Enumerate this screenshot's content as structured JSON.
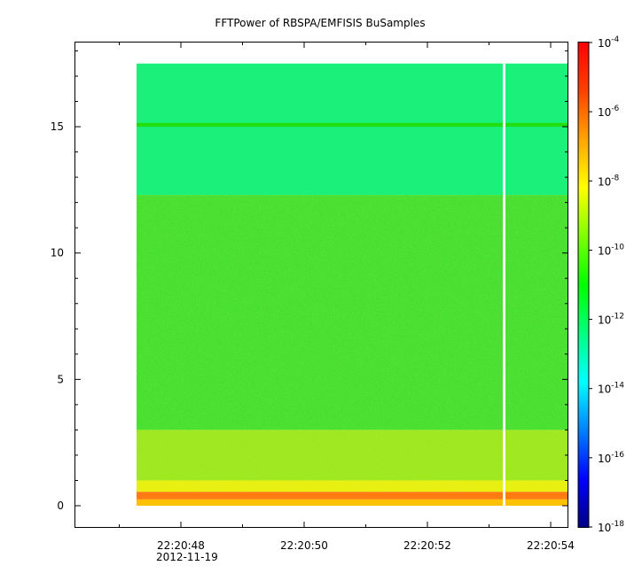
{
  "chart_data": {
    "type": "heatmap",
    "title": "FFTPower of RBSPA/EMFISIS  BuSamples",
    "xlabel": "",
    "ylabel": "",
    "x_ticks": [
      "22:20:48",
      "22:20:50",
      "22:20:52",
      "22:20:54"
    ],
    "x_sublabel": "2012-11-19",
    "y_ticks": [
      0,
      5,
      10,
      15
    ],
    "ylim": [
      -0.3,
      18.5
    ],
    "colorbar": {
      "scale": "log",
      "range": [
        1e-18,
        0.0001
      ],
      "tick_labels": [
        {
          "base": "10",
          "exp": "-18",
          "value": 1e-18
        },
        {
          "base": "10",
          "exp": "-16",
          "value": 1e-16
        },
        {
          "base": "10",
          "exp": "-14",
          "value": 1e-14
        },
        {
          "base": "10",
          "exp": "-12",
          "value": 1e-12
        },
        {
          "base": "10",
          "exp": "-10",
          "value": 1e-10
        },
        {
          "base": "10",
          "exp": "-8",
          "value": 1e-08
        },
        {
          "base": "10",
          "exp": "-6",
          "value": 1e-06
        },
        {
          "base": "10",
          "exp": "-4",
          "value": 0.0001
        }
      ],
      "colormap": [
        "#000080",
        "#0000ff",
        "#0080ff",
        "#00ffff",
        "#00ff80",
        "#00ff00",
        "#80ff00",
        "#ffff00",
        "#ffa500",
        "#ff4000",
        "#ff0000"
      ]
    },
    "spectrogram_bands": [
      {
        "y_from": 12.3,
        "y_to": 17.5,
        "level": "~1e-11",
        "color": "#1af07a"
      },
      {
        "y_from": 15.0,
        "y_to": 15.15,
        "level": "~1e-10",
        "color": "#22dd10"
      },
      {
        "y_from": 3.0,
        "y_to": 12.3,
        "level": "~1e-10",
        "color": "#48e030"
      },
      {
        "y_from": 1.0,
        "y_to": 3.0,
        "level": "~1e-9",
        "color": "#9ee820"
      },
      {
        "y_from": 0.55,
        "y_to": 1.0,
        "level": "~1e-8",
        "color": "#e8f010"
      },
      {
        "y_from": 0.25,
        "y_to": 0.55,
        "level": "~1e-6",
        "color": "#ff7a10"
      },
      {
        "y_from": 0.0,
        "y_to": 0.25,
        "level": "~1e-7",
        "color": "#ffc000"
      }
    ],
    "data_gap": "one white vertical gap between 22:20:53 and 22:20:54"
  }
}
